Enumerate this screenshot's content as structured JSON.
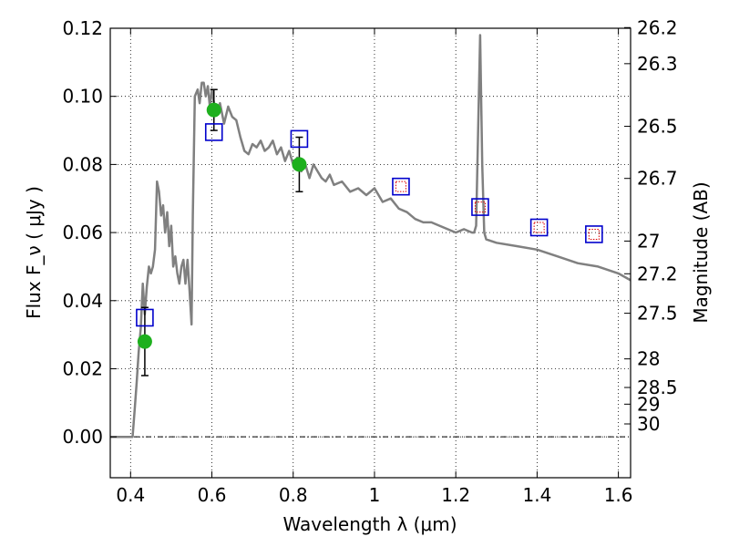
{
  "chart_data": {
    "type": "line",
    "xlabel": "Wavelength  λ (μm)",
    "ylabel": "Flux  F_ν  ( μJy )",
    "y2label": "Magnitude (AB)",
    "xlim": [
      0.35,
      1.63
    ],
    "ylim": [
      -0.012,
      0.12
    ],
    "grid": true,
    "x_ticks": [
      0.4,
      0.6,
      0.8,
      1.0,
      1.2,
      1.4,
      1.6
    ],
    "x_tick_labels": [
      "0.4",
      "0.6",
      "0.8",
      "1",
      "1.2",
      "1.4",
      "1.6"
    ],
    "y_ticks": [
      0.0,
      0.02,
      0.04,
      0.06,
      0.08,
      0.1,
      0.12
    ],
    "y_tick_labels": [
      "0.00",
      "0.02",
      "0.04",
      "0.06",
      "0.08",
      "0.10",
      "0.12"
    ],
    "mag_ticks": [
      {
        "label": "26.2",
        "flux": 0.1202
      },
      {
        "label": "26.3",
        "flux": 0.1096
      },
      {
        "label": "26.5",
        "flux": 0.0912
      },
      {
        "label": "26.7",
        "flux": 0.0759
      },
      {
        "label": "27",
        "flux": 0.0575
      },
      {
        "label": "27.2",
        "flux": 0.0479
      },
      {
        "label": "27.5",
        "flux": 0.0363
      },
      {
        "label": "28",
        "flux": 0.0229
      },
      {
        "label": "28.5",
        "flux": 0.0145
      },
      {
        "label": "29",
        "flux": 0.0096
      },
      {
        "label": "30",
        "flux": 0.0038
      }
    ],
    "series": [
      {
        "kind": "line",
        "color": "#808080",
        "x": [
          0.35,
          0.405,
          0.41,
          0.415,
          0.42,
          0.425,
          0.43,
          0.435,
          0.44,
          0.445,
          0.45,
          0.455,
          0.46,
          0.465,
          0.47,
          0.475,
          0.48,
          0.485,
          0.49,
          0.495,
          0.5,
          0.505,
          0.51,
          0.515,
          0.52,
          0.525,
          0.53,
          0.535,
          0.54,
          0.545,
          0.55,
          0.553,
          0.558,
          0.565,
          0.57,
          0.575,
          0.58,
          0.585,
          0.59,
          0.595,
          0.6,
          0.605,
          0.61,
          0.62,
          0.63,
          0.64,
          0.65,
          0.66,
          0.67,
          0.68,
          0.69,
          0.7,
          0.71,
          0.72,
          0.73,
          0.74,
          0.75,
          0.76,
          0.77,
          0.78,
          0.79,
          0.8,
          0.81,
          0.82,
          0.83,
          0.84,
          0.85,
          0.86,
          0.87,
          0.88,
          0.89,
          0.9,
          0.92,
          0.94,
          0.96,
          0.98,
          1.0,
          1.02,
          1.04,
          1.06,
          1.08,
          1.1,
          1.12,
          1.14,
          1.16,
          1.18,
          1.2,
          1.22,
          1.24,
          1.245,
          1.25,
          1.255,
          1.26,
          1.265,
          1.27,
          1.275,
          1.3,
          1.35,
          1.4,
          1.45,
          1.5,
          1.55,
          1.6,
          1.63
        ],
        "y": [
          0.0,
          0.0,
          0.008,
          0.016,
          0.025,
          0.032,
          0.045,
          0.036,
          0.044,
          0.05,
          0.048,
          0.05,
          0.055,
          0.075,
          0.072,
          0.065,
          0.068,
          0.06,
          0.066,
          0.056,
          0.062,
          0.05,
          0.053,
          0.048,
          0.045,
          0.05,
          0.052,
          0.045,
          0.052,
          0.043,
          0.033,
          0.065,
          0.1,
          0.102,
          0.098,
          0.104,
          0.104,
          0.1,
          0.103,
          0.097,
          0.102,
          0.098,
          0.095,
          0.098,
          0.092,
          0.097,
          0.094,
          0.093,
          0.088,
          0.084,
          0.083,
          0.086,
          0.085,
          0.087,
          0.084,
          0.085,
          0.087,
          0.083,
          0.085,
          0.081,
          0.084,
          0.08,
          0.082,
          0.078,
          0.08,
          0.076,
          0.08,
          0.078,
          0.076,
          0.075,
          0.077,
          0.074,
          0.075,
          0.072,
          0.073,
          0.071,
          0.073,
          0.069,
          0.07,
          0.067,
          0.066,
          0.064,
          0.063,
          0.063,
          0.062,
          0.061,
          0.06,
          0.061,
          0.06,
          0.06,
          0.062,
          0.09,
          0.118,
          0.08,
          0.06,
          0.058,
          0.057,
          0.056,
          0.055,
          0.053,
          0.051,
          0.05,
          0.048,
          0.046
        ]
      },
      {
        "kind": "points",
        "marker": "circle",
        "color": "#1eb01e",
        "x": [
          0.435,
          0.605,
          0.815
        ],
        "y": [
          0.028,
          0.096,
          0.08
        ],
        "yerr": [
          0.01,
          0.006,
          0.008
        ]
      },
      {
        "kind": "points",
        "marker": "square",
        "color": "#0000cc",
        "x": [
          0.435,
          0.605,
          0.815,
          1.065,
          1.26,
          1.405,
          1.54
        ],
        "y": [
          0.035,
          0.0895,
          0.0875,
          0.0735,
          0.0675,
          0.0615,
          0.0595
        ]
      },
      {
        "kind": "points",
        "marker": "square-small",
        "color": "#dd0000",
        "x": [
          1.065,
          1.26,
          1.405,
          1.54
        ],
        "y": [
          0.0735,
          0.0675,
          0.0615,
          0.0595
        ]
      }
    ]
  }
}
